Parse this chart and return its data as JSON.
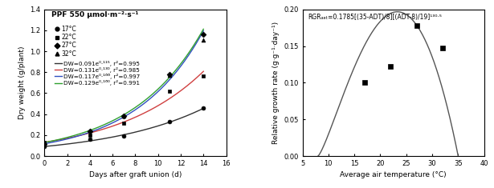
{
  "left": {
    "title": "PPF 550 μmol·m⁻²·s⁻¹",
    "xlabel": "Days after graft union (d)",
    "ylabel": "Dry weight (g/plant)",
    "xlim": [
      0,
      16
    ],
    "ylim": [
      0,
      1.4
    ],
    "xticks": [
      0,
      2,
      4,
      6,
      8,
      10,
      12,
      14,
      16
    ],
    "yticks": [
      0.0,
      0.2,
      0.4,
      0.6,
      0.8,
      1.0,
      1.2,
      1.4
    ],
    "curves": [
      {
        "a": 0.091,
        "b": 0.115,
        "color": "#333333"
      },
      {
        "a": 0.131,
        "b": 0.13,
        "color": "#d04040"
      },
      {
        "a": 0.117,
        "b": 0.166,
        "color": "#3050c0"
      },
      {
        "a": 0.129,
        "b": 0.16,
        "color": "#30a030"
      }
    ],
    "data_17C": {
      "x": [
        0,
        4,
        7,
        11,
        14
      ],
      "y": [
        0.091,
        0.16,
        0.19,
        0.33,
        0.455
      ]
    },
    "data_22C": {
      "x": [
        0,
        4,
        7,
        11,
        14
      ],
      "y": [
        0.131,
        0.2,
        0.31,
        0.62,
        0.765
      ]
    },
    "data_27C": {
      "x": [
        0,
        4,
        7,
        11,
        14
      ],
      "y": [
        0.117,
        0.24,
        0.38,
        0.78,
        1.165
      ]
    },
    "data_32C": {
      "x": [
        0,
        4,
        7,
        11,
        14
      ],
      "y": [
        0.129,
        0.245,
        0.385,
        0.77,
        1.105
      ]
    },
    "legend_temps": [
      "17°C",
      "22°C",
      "27°C",
      "32°C"
    ],
    "eq_labels": [
      "DW=0.091e⁰·¹¹⁵, r²=0.995",
      "DW=0.131e⁰·¹³⁰, r²=0.985",
      "DW=0.117e⁰·¹⁶⁶, r²=0.997",
      "DW=0.129e⁰·¹⁶⁰, r²=0.991"
    ],
    "eq_colors": [
      "#333333",
      "#d04040",
      "#3050c0",
      "#30a030"
    ]
  },
  "right": {
    "xlabel": "Average air temperature (°C)",
    "ylabel": "Relative growth rate (g·g⁻¹·day⁻¹)",
    "xlim": [
      5,
      40
    ],
    "ylim": [
      0.0,
      0.2
    ],
    "xticks": [
      5,
      10,
      15,
      20,
      25,
      30,
      35,
      40
    ],
    "yticks": [
      0.0,
      0.05,
      0.1,
      0.15,
      0.2
    ],
    "annotation": "RGRₐₑₜ=0.1785[(35-ADT)/8][(ADT-8)/19]¹³⁰·⁵",
    "data_x": [
      17,
      22,
      27,
      32
    ],
    "data_y": [
      0.1,
      0.122,
      0.178,
      0.147
    ],
    "curve_color": "#555555"
  }
}
